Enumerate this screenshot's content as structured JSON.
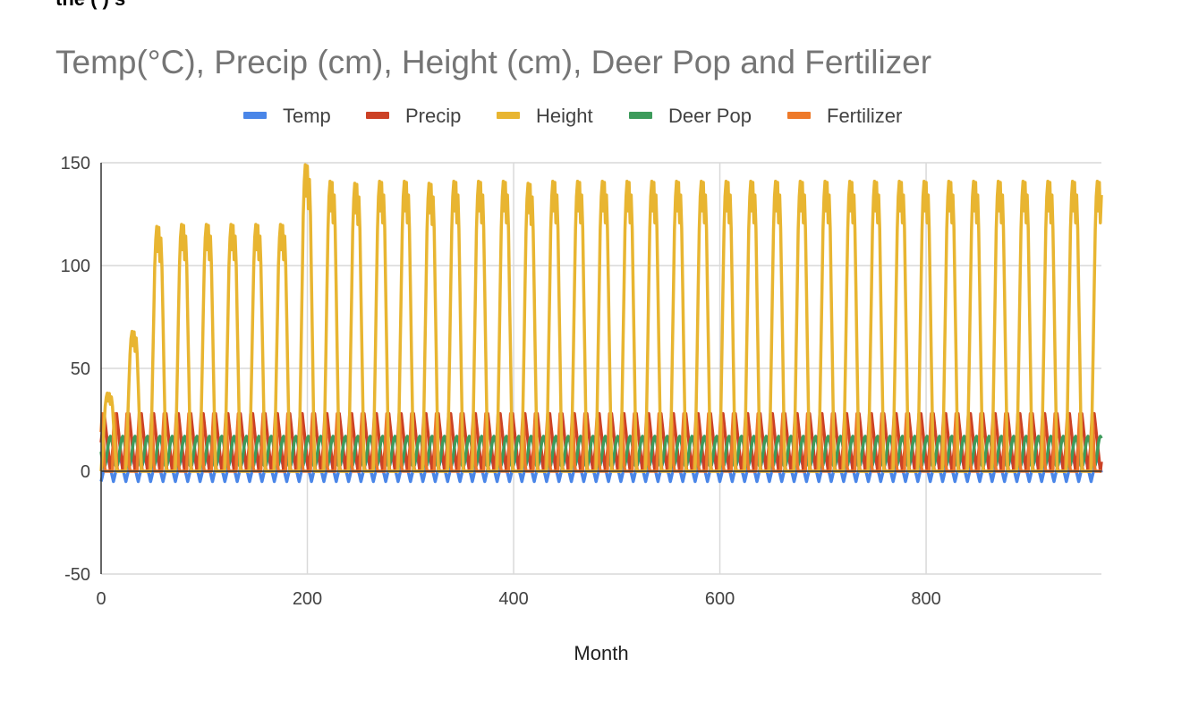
{
  "top_cut_text": "the (                     ) s",
  "chart_data": {
    "type": "line",
    "title": "Temp(°C), Precip (cm), Height (cm), Deer Pop and Fertilizer",
    "xlabel": "Month",
    "ylabel": "",
    "xlim": [
      0,
      970
    ],
    "ylim": [
      -50,
      150
    ],
    "x_ticks": [
      "0",
      "200",
      "400",
      "600",
      "800"
    ],
    "y_ticks": [
      "150",
      "100",
      "50",
      "0",
      "-50"
    ],
    "grid": true,
    "legend_position": "top",
    "cycle_months": 12,
    "series": [
      {
        "name": "Temp",
        "color": "#4a86e8",
        "min": -5,
        "max": 8,
        "summary": "periodic 12-month oscillation between about -5 and 8"
      },
      {
        "name": "Precip",
        "color": "#cc4125",
        "min": 0,
        "max": 28,
        "summary": "periodic oscillation between 0 and about 28"
      },
      {
        "name": "Height",
        "color": "#e8b531",
        "summary": "annual growth peaks",
        "peaks": [
          38,
          68,
          119,
          120,
          120,
          120,
          120,
          120,
          149,
          141,
          140,
          141,
          141,
          140,
          141,
          141,
          141,
          140,
          141,
          141,
          141,
          141,
          141,
          141,
          141,
          141,
          141,
          141,
          141,
          141,
          141,
          141,
          141,
          141,
          141,
          141,
          141,
          141,
          141,
          141,
          141
        ],
        "troughs": 0
      },
      {
        "name": "Deer Pop",
        "color": "#3d9b5b",
        "min": 2,
        "max": 17,
        "summary": "periodic oscillation between about 2 and 17"
      },
      {
        "name": "Fertilizer",
        "color": "#ee7a2a",
        "min": 0,
        "max": 28,
        "summary": "periodic spikes between 0 and about 28"
      }
    ]
  }
}
